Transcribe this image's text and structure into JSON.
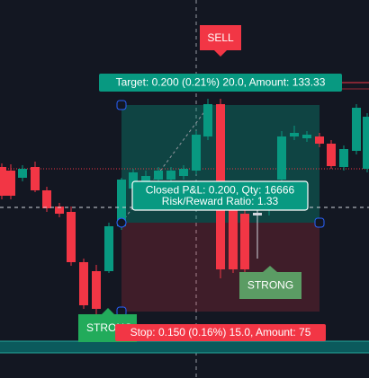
{
  "sell_label": "SELL",
  "target_label": "Target: 0.200 (0.21%) 20.0, Amount: 133.33",
  "pnl_label": {
    "line1": "Closed P&L: 0.200, Qty: 16666",
    "line2": "Risk/Reward Ratio: 1.33"
  },
  "strong_right": "STRONG",
  "strong_left": "STRONG",
  "stop_label": "Stop: 0.150 (0.16%) 15.0, Amount: 75"
}
